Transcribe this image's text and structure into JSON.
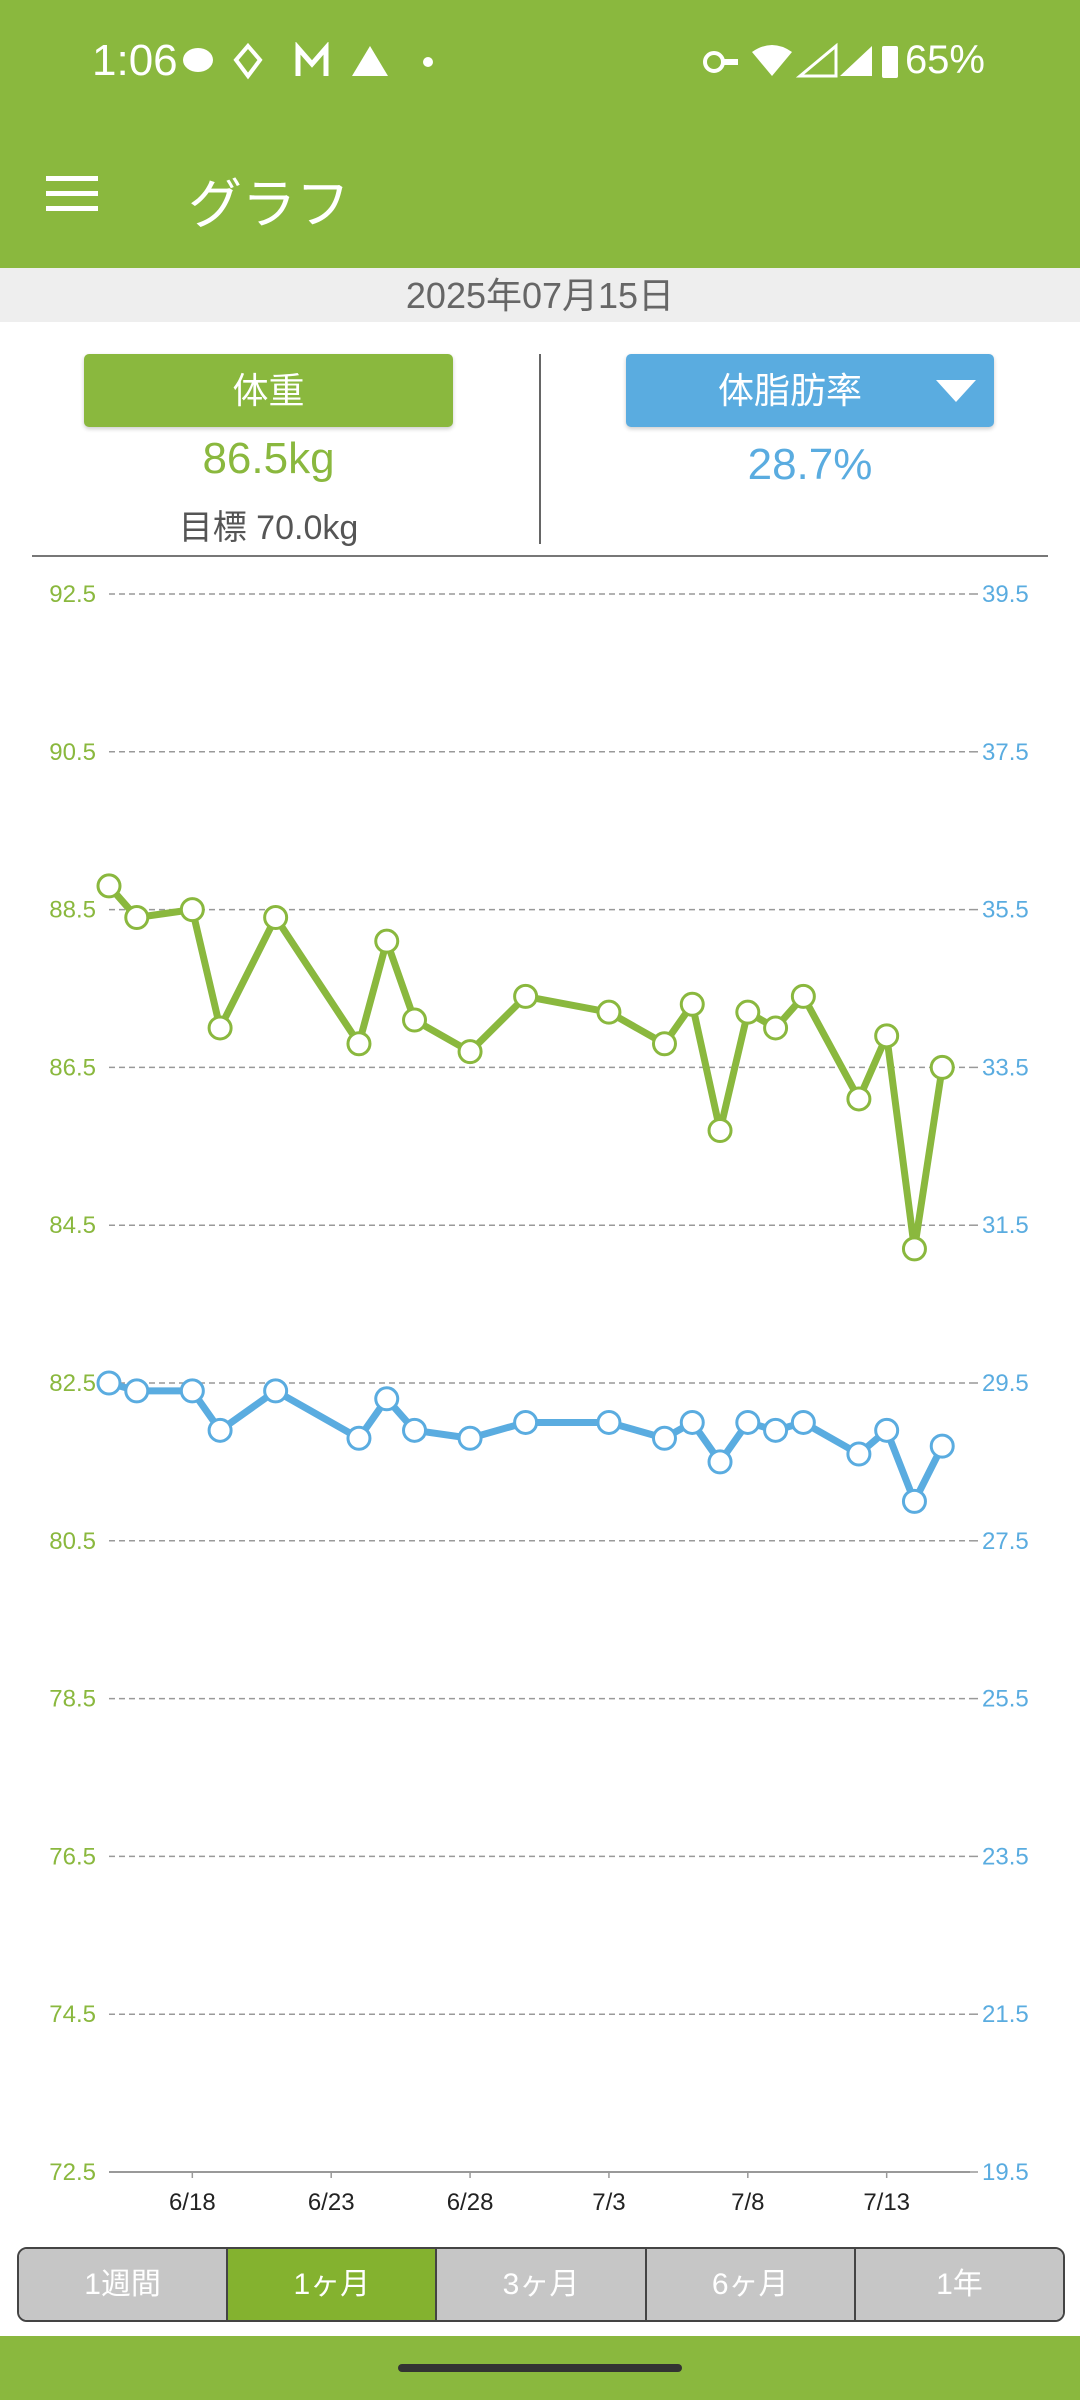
{
  "status_bar": {
    "time": "1:06",
    "battery": "65%"
  },
  "app_bar": {
    "title": "グラフ"
  },
  "date": "2025年07月15日",
  "panels": [
    {
      "label": "体重",
      "value": "86.5kg",
      "goal": "目標 70.0kg"
    },
    {
      "label": "体脂肪率",
      "value": "28.7%"
    }
  ],
  "chart_data": {
    "type": "line",
    "x": [
      0,
      1,
      3,
      4,
      6,
      9,
      10,
      11,
      13,
      15,
      18,
      20,
      21,
      22,
      23,
      24,
      25,
      27,
      28,
      29,
      30
    ],
    "xlim": [
      0,
      31
    ],
    "xticks": [
      {
        "value": 3,
        "label": "6/18"
      },
      {
        "value": 8,
        "label": "6/23"
      },
      {
        "value": 13,
        "label": "6/28"
      },
      {
        "value": 18,
        "label": "7/3"
      },
      {
        "value": 23,
        "label": "7/8"
      },
      {
        "value": 28,
        "label": "7/13"
      }
    ],
    "ylim": [
      72.5,
      92.5
    ],
    "yticks": [
      72.5,
      74.5,
      76.5,
      78.5,
      80.5,
      82.5,
      84.5,
      86.5,
      88.5,
      90.5,
      92.5
    ],
    "y2lim": [
      19.5,
      39.5
    ],
    "y2ticks": [
      19.5,
      21.5,
      23.5,
      25.5,
      27.5,
      29.5,
      31.5,
      33.5,
      35.5,
      37.5,
      39.5
    ],
    "grid": true,
    "series": [
      {
        "color": "#8ab83e",
        "values": [
          88.8,
          88.4,
          88.5,
          87.0,
          88.4,
          86.8,
          88.1,
          87.1,
          86.7,
          87.4,
          87.2,
          86.8,
          87.3,
          85.7,
          87.2,
          87.0,
          87.4,
          86.1,
          86.9,
          84.2,
          86.5
        ]
      },
      {
        "color": "#5aace0",
        "axis": "y2",
        "values": [
          29.5,
          29.4,
          29.4,
          28.9,
          29.4,
          28.8,
          29.3,
          28.9,
          28.8,
          29.0,
          29.0,
          28.8,
          29.0,
          28.5,
          29.0,
          28.9,
          29.0,
          28.6,
          28.9,
          28.0,
          28.7
        ]
      }
    ]
  },
  "tabs": {
    "items": [
      "1週間",
      "1ヶ月",
      "3ヶ月",
      "6ヶ月",
      "1年"
    ],
    "selected": 1
  }
}
